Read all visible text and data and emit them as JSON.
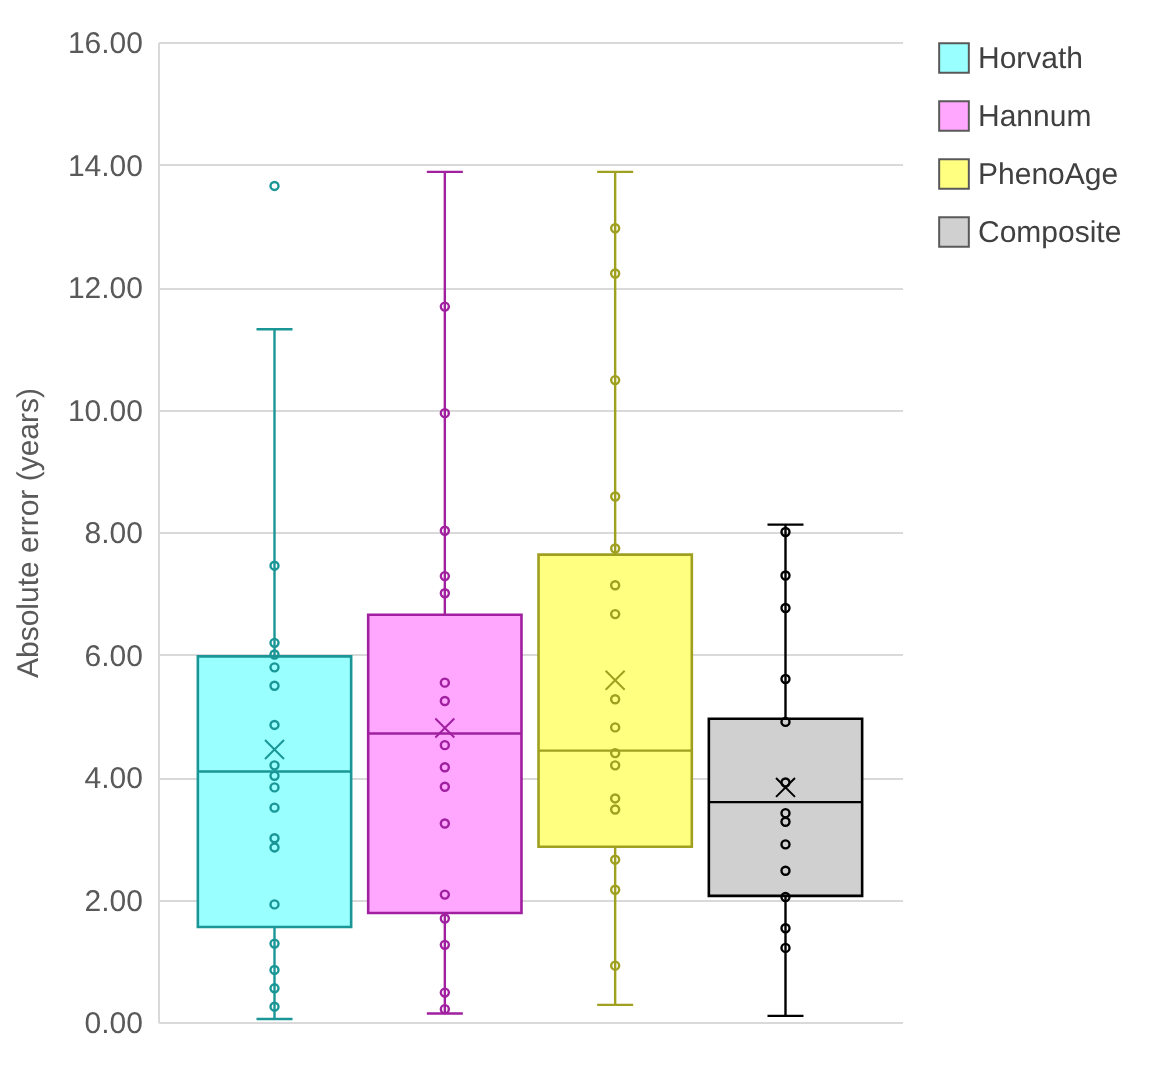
{
  "chart_data": {
    "type": "box",
    "ylabel": "Absolute error (years)",
    "categories": [
      null
    ],
    "ylim": [
      0,
      16
    ],
    "yticks": [
      {
        "value": 0,
        "label": "0.00"
      },
      {
        "value": 2,
        "label": "2.00"
      },
      {
        "value": 4,
        "label": "4.00"
      },
      {
        "value": 6,
        "label": "6.00"
      },
      {
        "value": 8,
        "label": "8.00"
      },
      {
        "value": 10,
        "label": "10.00"
      },
      {
        "value": 12,
        "label": "12.00"
      },
      {
        "value": 14,
        "label": "14.00"
      },
      {
        "value": 16,
        "label": "16.00"
      }
    ],
    "grid": "y",
    "legend": "right",
    "tick_labels": "y",
    "marker": "circle",
    "series": [
      {
        "type": "box",
        "name": "Horvath",
        "color": "#99ffff",
        "boxes": [
          {
            "low": 0.05,
            "q1": 1.55,
            "median": 4.09,
            "q3": 5.97,
            "high": 11.31,
            "mean": 4.45,
            "outliers": [
              13.65
            ]
          }
        ]
      },
      {
        "type": "box",
        "name": "Hannum",
        "color": "#ffa6ff",
        "boxes": [
          {
            "low": 0.14,
            "q1": 1.78,
            "median": 4.71,
            "q3": 6.65,
            "high": 13.88,
            "mean": 4.8
          }
        ]
      },
      {
        "type": "box",
        "name": "PhenoAge",
        "color": "#ffff80",
        "boxes": [
          {
            "low": 0.28,
            "q1": 2.86,
            "median": 4.43,
            "q3": 7.63,
            "high": 13.88,
            "mean": 5.58
          }
        ]
      },
      {
        "type": "box",
        "name": "Composite",
        "color": "#d0d0d0",
        "boxes": [
          {
            "low": 0.1,
            "q1": 2.06,
            "median": 3.59,
            "q3": 4.95,
            "high": 8.12,
            "mean": 3.83
          }
        ]
      },
      {
        "type": "scatter",
        "color": "#1a9696",
        "x": [
          null,
          null,
          null,
          null,
          null,
          null,
          null,
          null,
          null,
          null,
          null,
          null,
          null,
          null,
          null,
          null,
          null
        ],
        "values": [
          0.25,
          0.55,
          0.85,
          1.28,
          1.92,
          2.85,
          3.0,
          3.5,
          3.83,
          4.02,
          4.19,
          4.85,
          5.49,
          5.79,
          6.0,
          6.19,
          7.45
        ]
      },
      {
        "type": "scatter",
        "color": "#a020a0",
        "x": [
          null,
          null,
          null,
          null,
          null,
          null,
          null,
          null,
          null,
          null,
          null,
          null,
          null,
          null,
          null,
          null
        ],
        "values": [
          0.21,
          0.48,
          1.26,
          1.69,
          2.08,
          3.24,
          3.84,
          4.16,
          4.52,
          5.24,
          5.54,
          7.0,
          7.28,
          8.02,
          9.94,
          11.68
        ]
      },
      {
        "type": "scatter",
        "color": "#a0a020",
        "x": [
          null,
          null,
          null,
          null,
          null,
          null,
          null,
          null,
          null,
          null,
          null,
          null,
          null,
          null,
          null,
          null
        ],
        "values": [
          0.92,
          2.16,
          2.65,
          3.47,
          3.65,
          4.19,
          4.39,
          4.81,
          5.27,
          6.66,
          7.13,
          7.73,
          8.58,
          10.48,
          12.22,
          12.96
        ]
      },
      {
        "type": "scatter",
        "color": "#000000",
        "x": [
          null,
          null,
          null,
          null,
          null,
          null,
          null,
          null,
          null,
          null,
          null,
          null,
          null
        ],
        "values": [
          1.21,
          1.53,
          2.04,
          2.47,
          2.9,
          3.27,
          3.41,
          3.91,
          4.9,
          5.6,
          6.76,
          7.29,
          8.0
        ]
      }
    ]
  }
}
